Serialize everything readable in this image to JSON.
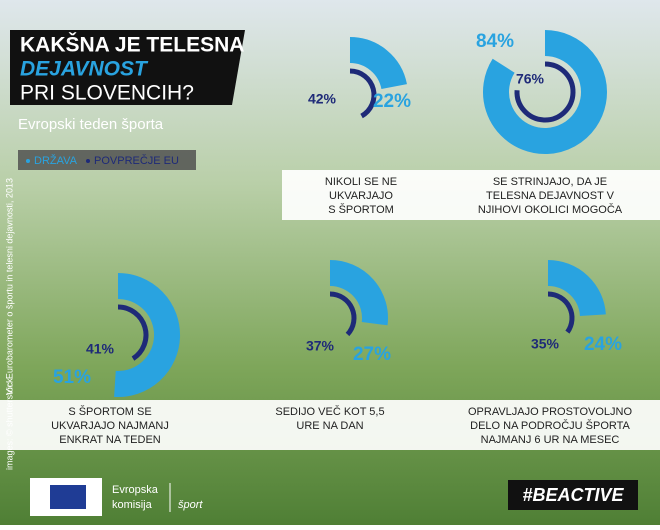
{
  "header": {
    "title_lines": [
      "KAKŠNA JE TELESNA",
      "DEJAVNOST",
      "PRI SLOVENCIH?"
    ],
    "subtitle": "Evropski teden športa"
  },
  "legend": [
    {
      "label": "DRŽAVA",
      "color": "#29a3e0"
    },
    {
      "label": "POVPREČJE EU",
      "color": "#1e2a78"
    }
  ],
  "panels": [
    {
      "caption": [
        "NIKOLI SE NE",
        "UKVARJAJO",
        "S ŠPORTOM"
      ],
      "values": [
        22,
        42
      ],
      "value_labels": [
        "22%",
        "42%"
      ]
    },
    {
      "caption": [
        "SE STRINJAJO, DA JE",
        "TELESNA DEJAVNOST V",
        "NJIHOVI OKOLICI MOGOČA"
      ],
      "values": [
        84,
        76
      ],
      "value_labels": [
        "84%",
        "76%"
      ]
    },
    {
      "caption": [
        "S ŠPORTOM SE",
        "UKVARJAJO NAJMANJ",
        "ENKRAT NA TEDEN"
      ],
      "values": [
        51,
        41
      ],
      "value_labels": [
        "51%",
        "41%"
      ]
    },
    {
      "caption": [
        "SEDIJO VEČ KOT 5,5",
        "URE NA DAN"
      ],
      "values": [
        27,
        37
      ],
      "value_labels": [
        "27%",
        "37%"
      ]
    },
    {
      "caption": [
        "OPRAVLJAJO PROSTOVOLJNO",
        "DELO NA PODROČJU ŠPORTA",
        "NAJMANJ 6 UR NA MESEC"
      ],
      "values": [
        24,
        35
      ],
      "value_labels": [
        "24%",
        "35%"
      ]
    }
  ],
  "side_notes": [
    "images: © shutterstock",
    "Vir: Eurobarometer o športu in telesni dejavnosti, 2013"
  ],
  "footer": {
    "org_lines": [
      "Evropska",
      "komisija"
    ],
    "unit": "šport",
    "hashtag": "#BEACTIVE"
  }
}
